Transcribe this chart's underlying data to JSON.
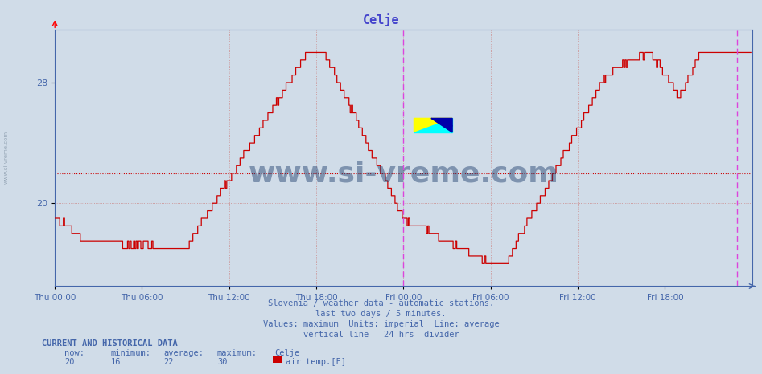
{
  "title": "Celje",
  "title_color": "#4444cc",
  "bg_color": "#d0dce8",
  "plot_bg_color": "#d0dce8",
  "line_color": "#cc0000",
  "avg_line_color": "#cc0000",
  "avg_value": 22,
  "ymin": 14.5,
  "ymax": 31.5,
  "yticks": [
    20,
    28
  ],
  "xlabel_color": "#4466aa",
  "grid_color": "#cc8888",
  "grid_style": ":",
  "divider_color": "#dd44dd",
  "x_tick_labels": [
    "Thu 00:00",
    "Thu 06:00",
    "Thu 12:00",
    "Thu 18:00",
    "Fri 00:00",
    "Fri 06:00",
    "Fri 12:00",
    "Fri 18:00"
  ],
  "footer_lines": [
    "Slovenia / weather data - automatic stations.",
    "last two days / 5 minutes.",
    "Values: maximum  Units: imperial  Line: average",
    "vertical line - 24 hrs  divider"
  ],
  "footer_color": "#4466aa",
  "current_label": "CURRENT AND HISTORICAL DATA",
  "stats_headers": [
    "now:",
    "minimum:",
    "average:",
    "maximum:",
    "Celje"
  ],
  "stats_values": [
    "20",
    "16",
    "22",
    "30"
  ],
  "legend_label": "air temp.[F]",
  "legend_color": "#cc0000",
  "watermark": "www.si-vreme.com",
  "watermark_color": "#1a3a6a",
  "left_label": "www.si-vreme.com",
  "left_label_color": "#8899aa"
}
